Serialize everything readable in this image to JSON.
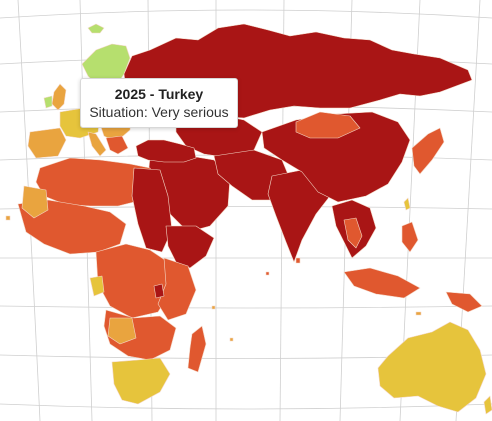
{
  "tooltip": {
    "title": "2025 - Turkey",
    "situation": "Situation: Very serious"
  },
  "colors": {
    "very_serious": "#a91515",
    "difficult": "#e0582f",
    "problematic": "#e9a43f",
    "satisfactory": "#e6c43c",
    "good": "#b6df6e",
    "highlight_outline": "#111111",
    "border": "#f4d7c6"
  }
}
